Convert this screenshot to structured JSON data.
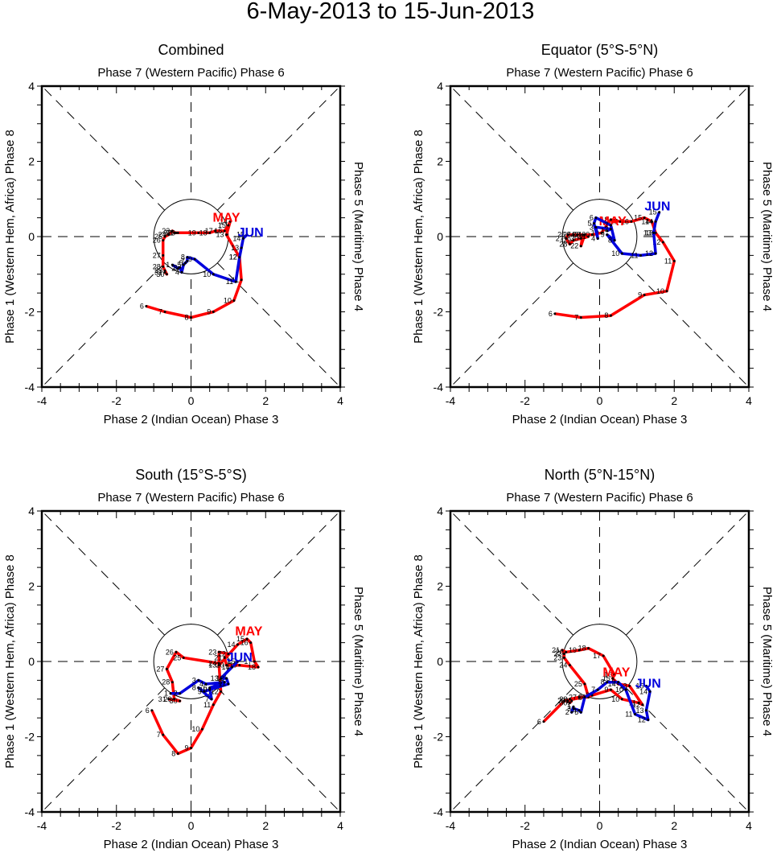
{
  "title": "6-May-2013 to 15-Jun-2013",
  "colors": {
    "may": "#ff0000",
    "jun": "#0000dd",
    "axis": "#000000"
  },
  "chart_data": [
    {
      "type": "line",
      "title": "Combined",
      "top_label": "Phase 7 (Western Pacific) Phase 6",
      "xlabel": "Phase 2 (Indian Ocean) Phase 3",
      "ylabel_left": "Phase 1 (Western Hem, Africa) Phase 8",
      "ylabel_right": "Phase 5 (Maritime) Phase 4",
      "xlim": [
        -4,
        4
      ],
      "ylim": [
        -4,
        4
      ],
      "xticks": [
        "-4",
        "-2",
        "0",
        "2",
        "4"
      ],
      "yticks": [
        "-4",
        "-2",
        "0",
        "2",
        "4"
      ],
      "series": [
        {
          "name": "MAY",
          "color": "#ff0000",
          "days": [
            6,
            7,
            8,
            9,
            10,
            11,
            12,
            13,
            14,
            15,
            16,
            17,
            18,
            19,
            20,
            21,
            22,
            23,
            24,
            25,
            26,
            27,
            28,
            29,
            30,
            31
          ],
          "x": [
            -1.2,
            -0.7,
            0,
            0.6,
            1.15,
            1.35,
            1.3,
            0.95,
            1.05,
            1.0,
            0.9,
            0.65,
            0.5,
            0.2,
            -0.35,
            -0.4,
            -0.45,
            -0.5,
            -0.6,
            -0.7,
            -0.75,
            -0.75,
            -0.75,
            -0.7,
            -0.65,
            -0.7
          ],
          "y": [
            -1.85,
            -2.0,
            -2.15,
            -2.0,
            -1.7,
            -1.15,
            -0.55,
            0.05,
            0.4,
            0.3,
            0.15,
            0.15,
            0.1,
            0.1,
            0.1,
            0.1,
            0.1,
            0.15,
            0.05,
            0.0,
            -0.1,
            -0.5,
            -0.8,
            -0.9,
            -1.0,
            -0.95
          ],
          "label_at": [
            0.95,
            0.4
          ]
        },
        {
          "name": "JUN",
          "color": "#0000dd",
          "days": [
            1,
            2,
            3,
            4,
            5,
            6,
            7,
            8,
            9,
            10,
            11,
            12,
            13,
            14,
            15
          ],
          "x": [
            -0.5,
            -0.35,
            -0.3,
            -0.25,
            -0.2,
            -0.15,
            -0.1,
            -0.1,
            0.1,
            0.6,
            1.2,
            1.3,
            1.35,
            1.4,
            1.5
          ],
          "y": [
            -0.75,
            -0.85,
            -0.82,
            -0.95,
            -0.75,
            -0.7,
            -0.65,
            -0.55,
            -0.6,
            -1.0,
            -1.2,
            -0.55,
            -0.3,
            -0.05,
            0.05
          ],
          "label_at": [
            1.6,
            0.0
          ]
        }
      ]
    },
    {
      "type": "line",
      "title": "Equator (5°S-5°N)",
      "top_label": "Phase 7 (Western Pacific) Phase 6",
      "xlabel": "Phase 2 (Indian Ocean) Phase 3",
      "ylabel_left": "Phase 1 (Western Hem, Africa) Phase 8",
      "ylabel_right": "Phase 5 (Maritime) Phase 4",
      "xlim": [
        -4,
        4
      ],
      "ylim": [
        -4,
        4
      ],
      "xticks": [
        "-4",
        "-2",
        "0",
        "2",
        "4"
      ],
      "yticks": [
        "-4",
        "-2",
        "0",
        "2",
        "4"
      ],
      "series": [
        {
          "name": "MAY",
          "color": "#ff0000",
          "days": [
            6,
            7,
            8,
            9,
            10,
            11,
            12,
            13,
            14,
            15,
            16,
            17,
            18,
            19,
            20,
            21,
            22,
            23,
            24,
            25,
            26,
            27,
            28,
            29,
            30,
            31
          ],
          "x": [
            -1.2,
            -0.5,
            0.3,
            1.2,
            1.8,
            2.0,
            1.7,
            1.5,
            1.4,
            1.2,
            0.85,
            0.55,
            0.3,
            0.05,
            -0.2,
            -0.4,
            -0.5,
            -0.45,
            -0.6,
            -0.7,
            -0.85,
            -0.9,
            -0.8,
            -0.7,
            -0.5,
            -0.3
          ],
          "y": [
            -2.05,
            -2.15,
            -2.1,
            -1.55,
            -1.45,
            -0.65,
            -0.15,
            0.1,
            0.4,
            0.5,
            0.4,
            0.4,
            0.45,
            0.1,
            0.05,
            0.05,
            -0.25,
            0.05,
            0.05,
            0.05,
            0.05,
            -0.05,
            -0.2,
            -0.1,
            -0.05,
            0.0
          ],
          "label_at": [
            0.35,
            0.3
          ]
        },
        {
          "name": "JUN",
          "color": "#0000dd",
          "days": [
            1,
            2,
            3,
            4,
            5,
            6,
            7,
            8,
            9,
            10,
            11,
            12,
            13,
            14,
            15
          ],
          "x": [
            0.2,
            0.3,
            -0.1,
            -0.05,
            -0.15,
            -0.1,
            0.3,
            0.4,
            0.2,
            0.6,
            1.1,
            1.5,
            1.45,
            1.5,
            1.6
          ],
          "y": [
            0.15,
            0.2,
            0.25,
            -0.05,
            0.35,
            0.5,
            0.3,
            -0.1,
            0.05,
            -0.45,
            -0.5,
            -0.45,
            0.1,
            0.4,
            0.65
          ],
          "label_at": [
            1.55,
            0.7
          ]
        }
      ]
    },
    {
      "type": "line",
      "title": "South (15°S-5°S)",
      "top_label": "Phase 7 (Western Pacific) Phase 6",
      "xlabel": "Phase 2 (Indian Ocean) Phase 3",
      "ylabel_left": "Phase 1 (Western Hem, Africa) Phase 8",
      "ylabel_right": "Phase 5 (Maritime) Phase 4",
      "xlim": [
        -4,
        4
      ],
      "ylim": [
        -4,
        4
      ],
      "xticks": [
        "-4",
        "-2",
        "0",
        "2",
        "4"
      ],
      "yticks": [
        "-4",
        "-2",
        "0",
        "2",
        "4"
      ],
      "series": [
        {
          "name": "MAY",
          "color": "#ff0000",
          "days": [
            6,
            7,
            8,
            9,
            10,
            11,
            12,
            13,
            14,
            15,
            16,
            17,
            18,
            19,
            20,
            21,
            22,
            23,
            24,
            25,
            26,
            27,
            28,
            29,
            30,
            31
          ],
          "x": [
            -1.05,
            -0.75,
            -0.35,
            0,
            0.3,
            0.6,
            0.8,
            0.75,
            1.25,
            1.5,
            1.6,
            1.7,
            1.8,
            1.3,
            0.95,
            0.9,
            1.0,
            0.75,
            0.75,
            -0.2,
            -0.4,
            -0.65,
            -0.5,
            -0.45,
            -0.3,
            -0.6
          ],
          "y": [
            -1.3,
            -1.95,
            -2.45,
            -2.3,
            -1.8,
            -1.15,
            -0.8,
            -0.1,
            0.45,
            0.6,
            0.5,
            0.0,
            -0.15,
            -0.1,
            -0.1,
            0.1,
            0.2,
            0.25,
            -0.05,
            0.1,
            0.25,
            -0.2,
            -0.55,
            -1.0,
            -1.05,
            -1.0
          ],
          "label_at": [
            1.55,
            0.7
          ]
        },
        {
          "name": "JUN",
          "color": "#0000dd",
          "days": [
            1,
            2,
            3,
            4,
            5,
            6,
            7,
            8,
            9,
            10,
            11,
            12,
            13,
            14,
            15
          ],
          "x": [
            -0.55,
            -0.3,
            0.2,
            0.4,
            0.9,
            0.5,
            0.55,
            0.2,
            0.35,
            0.5,
            1.0,
            0.95,
            0.8,
            1.1,
            1.25
          ],
          "y": [
            -0.85,
            -0.85,
            -0.5,
            -0.6,
            -0.55,
            -0.7,
            -1.0,
            -0.7,
            -0.8,
            -0.75,
            -0.6,
            -0.45,
            -0.45,
            -0.15,
            0.0
          ],
          "label_at": [
            1.3,
            0.0
          ]
        }
      ]
    },
    {
      "type": "line",
      "title": "North (5°N-15°N)",
      "top_label": "Phase 7 (Western Pacific) Phase 6",
      "xlabel": "Phase 2 (Indian Ocean) Phase 3",
      "ylabel_left": "Phase 1 (Western Hem, Africa) Phase 8",
      "ylabel_right": "Phase 5 (Maritime) Phase 4",
      "xlim": [
        -4,
        4
      ],
      "ylim": [
        -4,
        4
      ],
      "xticks": [
        "-4",
        "-2",
        "0",
        "2",
        "4"
      ],
      "yticks": [
        "-4",
        "-2",
        "0",
        "2",
        "4"
      ],
      "series": [
        {
          "name": "MAY",
          "color": "#ff0000",
          "days": [
            6,
            7,
            8,
            9,
            10,
            11,
            12,
            13,
            14,
            15,
            16,
            17,
            18,
            19,
            20,
            21,
            22,
            23,
            24,
            25,
            26,
            27,
            28,
            29,
            30,
            31
          ],
          "x": [
            -1.5,
            -0.95,
            -0.2,
            0.3,
            0.6,
            1.05,
            1.15,
            0.8,
            0.5,
            0.35,
            0.4,
            0.1,
            -0.3,
            -0.55,
            -0.9,
            -1.0,
            -0.95,
            -0.95,
            -0.8,
            -0.4,
            -0.3,
            -0.55,
            -0.8,
            -0.85,
            -0.8,
            -0.75
          ],
          "y": [
            -1.6,
            -1.05,
            -0.9,
            -0.75,
            -1.0,
            -1.1,
            -1.15,
            -0.65,
            -0.6,
            -0.45,
            -0.35,
            0.15,
            0.35,
            0.3,
            0.25,
            0.3,
            0.2,
            0.1,
            -0.1,
            -0.6,
            -0.95,
            -0.95,
            -1.0,
            -1.05,
            -1.1,
            -1.05
          ],
          "label_at": [
            0.45,
            -0.4
          ]
        },
        {
          "name": "JUN",
          "color": "#0000dd",
          "days": [
            1,
            2,
            3,
            4,
            5,
            6,
            7,
            8,
            9,
            10,
            11,
            12,
            13,
            14,
            15
          ],
          "x": [
            -0.7,
            -0.75,
            -0.7,
            -0.55,
            -0.5,
            -0.4,
            -0.05,
            0.2,
            0.5,
            0.7,
            0.95,
            1.3,
            1.25,
            1.35,
            1.25
          ],
          "y": [
            -1.2,
            -1.35,
            -1.25,
            -1.3,
            -1.35,
            -0.95,
            -0.75,
            -0.55,
            -0.55,
            -0.75,
            -1.4,
            -1.55,
            -1.3,
            -0.8,
            -0.65
          ],
          "label_at": [
            1.3,
            -0.7
          ]
        }
      ]
    }
  ]
}
